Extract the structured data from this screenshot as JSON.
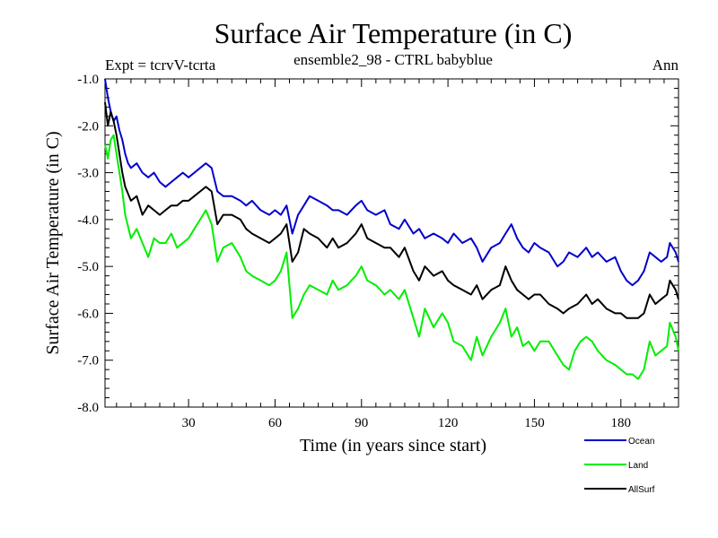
{
  "header": {
    "title": "Surface Air Temperature (in C)",
    "subtitle": "ensemble2_98 - CTRL babyblue",
    "left_label": "Expt = tcrvV-tcrta",
    "right_label": "Ann"
  },
  "chart_data": {
    "type": "line",
    "title": "Surface Air Temperature (in C)",
    "subtitle": "ensemble2_98 - CTRL babyblue",
    "xlabel": "Time (in years since start)",
    "ylabel": "Surface Air Temperature (in C)",
    "xlim": [
      1,
      200
    ],
    "ylim": [
      -8.0,
      -1.0
    ],
    "x_ticks": [
      30,
      60,
      90,
      120,
      150,
      180
    ],
    "x_tick_labels": [
      "30",
      "60",
      "90",
      "120",
      "150",
      "180"
    ],
    "y_ticks": [
      -1.0,
      -2.0,
      -3.0,
      -4.0,
      -5.0,
      -6.0,
      -7.0,
      -8.0
    ],
    "y_tick_labels": [
      "-1.0",
      "-2.0",
      "-3.0",
      "-4.0",
      "-5.0",
      "-6.0",
      "-7.0",
      "-8.0"
    ],
    "grid": false,
    "legend_position": "bottom-right",
    "series": [
      {
        "name": "Ocean",
        "color": "#0000cc",
        "points": [
          [
            1,
            -1.0
          ],
          [
            2,
            -1.4
          ],
          [
            3,
            -1.7
          ],
          [
            4,
            -1.9
          ],
          [
            5,
            -1.8
          ],
          [
            6,
            -2.1
          ],
          [
            7,
            -2.3
          ],
          [
            8,
            -2.6
          ],
          [
            9,
            -2.8
          ],
          [
            10,
            -2.9
          ],
          [
            12,
            -2.8
          ],
          [
            14,
            -3.0
          ],
          [
            16,
            -3.1
          ],
          [
            18,
            -3.0
          ],
          [
            20,
            -3.2
          ],
          [
            22,
            -3.3
          ],
          [
            24,
            -3.2
          ],
          [
            26,
            -3.1
          ],
          [
            28,
            -3.0
          ],
          [
            30,
            -3.1
          ],
          [
            32,
            -3.0
          ],
          [
            34,
            -2.9
          ],
          [
            36,
            -2.8
          ],
          [
            38,
            -2.9
          ],
          [
            40,
            -3.4
          ],
          [
            42,
            -3.5
          ],
          [
            45,
            -3.5
          ],
          [
            48,
            -3.6
          ],
          [
            50,
            -3.7
          ],
          [
            52,
            -3.6
          ],
          [
            55,
            -3.8
          ],
          [
            58,
            -3.9
          ],
          [
            60,
            -3.8
          ],
          [
            62,
            -3.9
          ],
          [
            64,
            -3.7
          ],
          [
            66,
            -4.3
          ],
          [
            68,
            -3.9
          ],
          [
            70,
            -3.7
          ],
          [
            72,
            -3.5
          ],
          [
            75,
            -3.6
          ],
          [
            78,
            -3.7
          ],
          [
            80,
            -3.8
          ],
          [
            82,
            -3.8
          ],
          [
            85,
            -3.9
          ],
          [
            88,
            -3.7
          ],
          [
            90,
            -3.6
          ],
          [
            92,
            -3.8
          ],
          [
            95,
            -3.9
          ],
          [
            98,
            -3.8
          ],
          [
            100,
            -4.1
          ],
          [
            103,
            -4.2
          ],
          [
            105,
            -4.0
          ],
          [
            108,
            -4.3
          ],
          [
            110,
            -4.2
          ],
          [
            112,
            -4.4
          ],
          [
            115,
            -4.3
          ],
          [
            118,
            -4.4
          ],
          [
            120,
            -4.5
          ],
          [
            122,
            -4.3
          ],
          [
            125,
            -4.5
          ],
          [
            128,
            -4.4
          ],
          [
            130,
            -4.6
          ],
          [
            132,
            -4.9
          ],
          [
            135,
            -4.6
          ],
          [
            138,
            -4.5
          ],
          [
            140,
            -4.3
          ],
          [
            142,
            -4.1
          ],
          [
            144,
            -4.4
          ],
          [
            146,
            -4.6
          ],
          [
            148,
            -4.7
          ],
          [
            150,
            -4.5
          ],
          [
            152,
            -4.6
          ],
          [
            155,
            -4.7
          ],
          [
            158,
            -5.0
          ],
          [
            160,
            -4.9
          ],
          [
            162,
            -4.7
          ],
          [
            165,
            -4.8
          ],
          [
            168,
            -4.6
          ],
          [
            170,
            -4.8
          ],
          [
            172,
            -4.7
          ],
          [
            175,
            -4.9
          ],
          [
            178,
            -4.8
          ],
          [
            180,
            -5.1
          ],
          [
            182,
            -5.3
          ],
          [
            184,
            -5.4
          ],
          [
            186,
            -5.3
          ],
          [
            188,
            -5.1
          ],
          [
            190,
            -4.7
          ],
          [
            192,
            -4.8
          ],
          [
            194,
            -4.9
          ],
          [
            196,
            -4.8
          ],
          [
            197,
            -4.5
          ],
          [
            199,
            -4.7
          ],
          [
            200,
            -4.9
          ]
        ]
      },
      {
        "name": "Land",
        "color": "#00ee00",
        "points": [
          [
            1,
            -2.4
          ],
          [
            2,
            -2.7
          ],
          [
            3,
            -2.3
          ],
          [
            4,
            -2.2
          ],
          [
            5,
            -2.6
          ],
          [
            6,
            -3.0
          ],
          [
            7,
            -3.4
          ],
          [
            8,
            -3.9
          ],
          [
            10,
            -4.4
          ],
          [
            12,
            -4.2
          ],
          [
            14,
            -4.5
          ],
          [
            16,
            -4.8
          ],
          [
            18,
            -4.4
          ],
          [
            20,
            -4.5
          ],
          [
            22,
            -4.5
          ],
          [
            24,
            -4.3
          ],
          [
            26,
            -4.6
          ],
          [
            28,
            -4.5
          ],
          [
            30,
            -4.4
          ],
          [
            32,
            -4.2
          ],
          [
            34,
            -4.0
          ],
          [
            36,
            -3.8
          ],
          [
            38,
            -4.1
          ],
          [
            40,
            -4.9
          ],
          [
            42,
            -4.6
          ],
          [
            45,
            -4.5
          ],
          [
            48,
            -4.8
          ],
          [
            50,
            -5.1
          ],
          [
            52,
            -5.2
          ],
          [
            55,
            -5.3
          ],
          [
            58,
            -5.4
          ],
          [
            60,
            -5.3
          ],
          [
            62,
            -5.1
          ],
          [
            64,
            -4.7
          ],
          [
            66,
            -6.1
          ],
          [
            68,
            -5.9
          ],
          [
            70,
            -5.6
          ],
          [
            72,
            -5.4
          ],
          [
            75,
            -5.5
          ],
          [
            78,
            -5.6
          ],
          [
            80,
            -5.3
          ],
          [
            82,
            -5.5
          ],
          [
            85,
            -5.4
          ],
          [
            88,
            -5.2
          ],
          [
            90,
            -5.0
          ],
          [
            92,
            -5.3
          ],
          [
            95,
            -5.4
          ],
          [
            98,
            -5.6
          ],
          [
            100,
            -5.5
          ],
          [
            103,
            -5.7
          ],
          [
            105,
            -5.5
          ],
          [
            108,
            -6.1
          ],
          [
            110,
            -6.5
          ],
          [
            112,
            -5.9
          ],
          [
            115,
            -6.3
          ],
          [
            118,
            -6.0
          ],
          [
            120,
            -6.2
          ],
          [
            122,
            -6.6
          ],
          [
            125,
            -6.7
          ],
          [
            128,
            -7.0
          ],
          [
            130,
            -6.5
          ],
          [
            132,
            -6.9
          ],
          [
            135,
            -6.5
          ],
          [
            138,
            -6.2
          ],
          [
            140,
            -5.9
          ],
          [
            142,
            -6.5
          ],
          [
            144,
            -6.3
          ],
          [
            146,
            -6.7
          ],
          [
            148,
            -6.6
          ],
          [
            150,
            -6.8
          ],
          [
            152,
            -6.6
          ],
          [
            155,
            -6.6
          ],
          [
            158,
            -6.9
          ],
          [
            160,
            -7.1
          ],
          [
            162,
            -7.2
          ],
          [
            164,
            -6.8
          ],
          [
            166,
            -6.6
          ],
          [
            168,
            -6.5
          ],
          [
            170,
            -6.6
          ],
          [
            172,
            -6.8
          ],
          [
            175,
            -7.0
          ],
          [
            178,
            -7.1
          ],
          [
            180,
            -7.2
          ],
          [
            182,
            -7.3
          ],
          [
            184,
            -7.3
          ],
          [
            186,
            -7.4
          ],
          [
            188,
            -7.2
          ],
          [
            190,
            -6.6
          ],
          [
            192,
            -6.9
          ],
          [
            194,
            -6.8
          ],
          [
            196,
            -6.7
          ],
          [
            197,
            -6.2
          ],
          [
            199,
            -6.5
          ],
          [
            200,
            -6.8
          ]
        ]
      },
      {
        "name": "AllSurf",
        "color": "#000000",
        "points": [
          [
            1,
            -1.5
          ],
          [
            2,
            -2.0
          ],
          [
            3,
            -1.7
          ],
          [
            4,
            -1.9
          ],
          [
            5,
            -2.2
          ],
          [
            6,
            -2.6
          ],
          [
            7,
            -3.0
          ],
          [
            8,
            -3.3
          ],
          [
            10,
            -3.6
          ],
          [
            12,
            -3.5
          ],
          [
            14,
            -3.9
          ],
          [
            16,
            -3.7
          ],
          [
            18,
            -3.8
          ],
          [
            20,
            -3.9
          ],
          [
            22,
            -3.8
          ],
          [
            24,
            -3.7
          ],
          [
            26,
            -3.7
          ],
          [
            28,
            -3.6
          ],
          [
            30,
            -3.6
          ],
          [
            32,
            -3.5
          ],
          [
            34,
            -3.4
          ],
          [
            36,
            -3.3
          ],
          [
            38,
            -3.4
          ],
          [
            40,
            -4.1
          ],
          [
            42,
            -3.9
          ],
          [
            45,
            -3.9
          ],
          [
            48,
            -4.0
          ],
          [
            50,
            -4.2
          ],
          [
            52,
            -4.3
          ],
          [
            55,
            -4.4
          ],
          [
            58,
            -4.5
          ],
          [
            60,
            -4.4
          ],
          [
            62,
            -4.3
          ],
          [
            64,
            -4.1
          ],
          [
            66,
            -4.9
          ],
          [
            68,
            -4.7
          ],
          [
            70,
            -4.2
          ],
          [
            72,
            -4.3
          ],
          [
            75,
            -4.4
          ],
          [
            78,
            -4.6
          ],
          [
            80,
            -4.4
          ],
          [
            82,
            -4.6
          ],
          [
            85,
            -4.5
          ],
          [
            88,
            -4.3
          ],
          [
            90,
            -4.1
          ],
          [
            92,
            -4.4
          ],
          [
            95,
            -4.5
          ],
          [
            98,
            -4.6
          ],
          [
            100,
            -4.6
          ],
          [
            103,
            -4.8
          ],
          [
            105,
            -4.6
          ],
          [
            108,
            -5.1
          ],
          [
            110,
            -5.3
          ],
          [
            112,
            -5.0
          ],
          [
            115,
            -5.2
          ],
          [
            118,
            -5.1
          ],
          [
            120,
            -5.3
          ],
          [
            122,
            -5.4
          ],
          [
            125,
            -5.5
          ],
          [
            128,
            -5.6
          ],
          [
            130,
            -5.4
          ],
          [
            132,
            -5.7
          ],
          [
            135,
            -5.5
          ],
          [
            138,
            -5.4
          ],
          [
            140,
            -5.0
          ],
          [
            142,
            -5.3
          ],
          [
            144,
            -5.5
          ],
          [
            146,
            -5.6
          ],
          [
            148,
            -5.7
          ],
          [
            150,
            -5.6
          ],
          [
            152,
            -5.6
          ],
          [
            155,
            -5.8
          ],
          [
            158,
            -5.9
          ],
          [
            160,
            -6.0
          ],
          [
            162,
            -5.9
          ],
          [
            165,
            -5.8
          ],
          [
            168,
            -5.6
          ],
          [
            170,
            -5.8
          ],
          [
            172,
            -5.7
          ],
          [
            175,
            -5.9
          ],
          [
            178,
            -6.0
          ],
          [
            180,
            -6.0
          ],
          [
            182,
            -6.1
          ],
          [
            184,
            -6.1
          ],
          [
            186,
            -6.1
          ],
          [
            188,
            -6.0
          ],
          [
            190,
            -5.6
          ],
          [
            192,
            -5.8
          ],
          [
            194,
            -5.7
          ],
          [
            196,
            -5.6
          ],
          [
            197,
            -5.3
          ],
          [
            199,
            -5.5
          ],
          [
            200,
            -5.7
          ]
        ]
      }
    ]
  }
}
